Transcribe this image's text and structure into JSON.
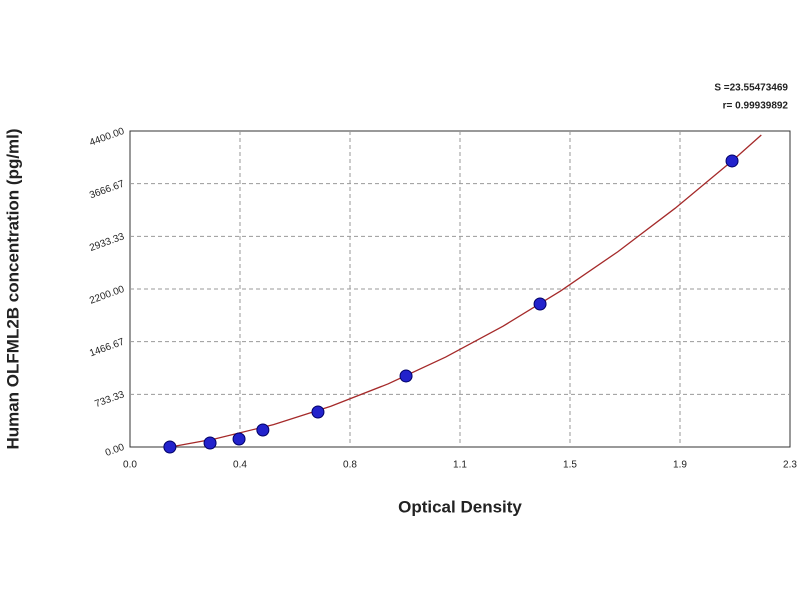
{
  "chart_data": {
    "type": "scatter",
    "xlabel": "Optical Density",
    "ylabel": "Human OLFML2B concentration (pg/ml)",
    "annotations": [
      "S =23.55473469",
      "r= 0.99939892"
    ],
    "xlim": [
      0,
      2.3
    ],
    "ylim": [
      0,
      4400
    ],
    "xticks": [
      {
        "value": 0,
        "label": "0.0"
      },
      {
        "value": 0.3833,
        "label": "0.4"
      },
      {
        "value": 0.7667,
        "label": "0.8"
      },
      {
        "value": 1.15,
        "label": "1.1"
      },
      {
        "value": 1.5333,
        "label": "1.5"
      },
      {
        "value": 1.9167,
        "label": "1.9"
      },
      {
        "value": 2.3,
        "label": "2.3"
      }
    ],
    "yticks": [
      {
        "value": 0,
        "label": "0.00"
      },
      {
        "value": 733.33,
        "label": "733.33"
      },
      {
        "value": 1466.67,
        "label": "1466.67"
      },
      {
        "value": 2200,
        "label": "2200.00"
      },
      {
        "value": 2933.33,
        "label": "2933.33"
      },
      {
        "value": 3666.67,
        "label": "3666.67"
      },
      {
        "value": 4400,
        "label": "4400.00"
      }
    ],
    "grid": true,
    "point_color": "#2222cc",
    "x": [
      0.139,
      0.279,
      0.38,
      0.463,
      0.655,
      0.962,
      1.429,
      2.098
    ],
    "values": [
      0,
      56,
      111,
      237,
      487,
      989,
      1991,
      3983
    ],
    "curve": {
      "color": "#a52a2a",
      "x": [
        0.15,
        0.3,
        0.5,
        0.7,
        0.9,
        1.1,
        1.3,
        1.5,
        1.7,
        1.9,
        2.1,
        2.2
      ],
      "values": [
        7,
        116,
        312,
        567,
        880,
        1252,
        1682,
        2171,
        2719,
        3325,
        3989,
        4344
      ]
    }
  }
}
